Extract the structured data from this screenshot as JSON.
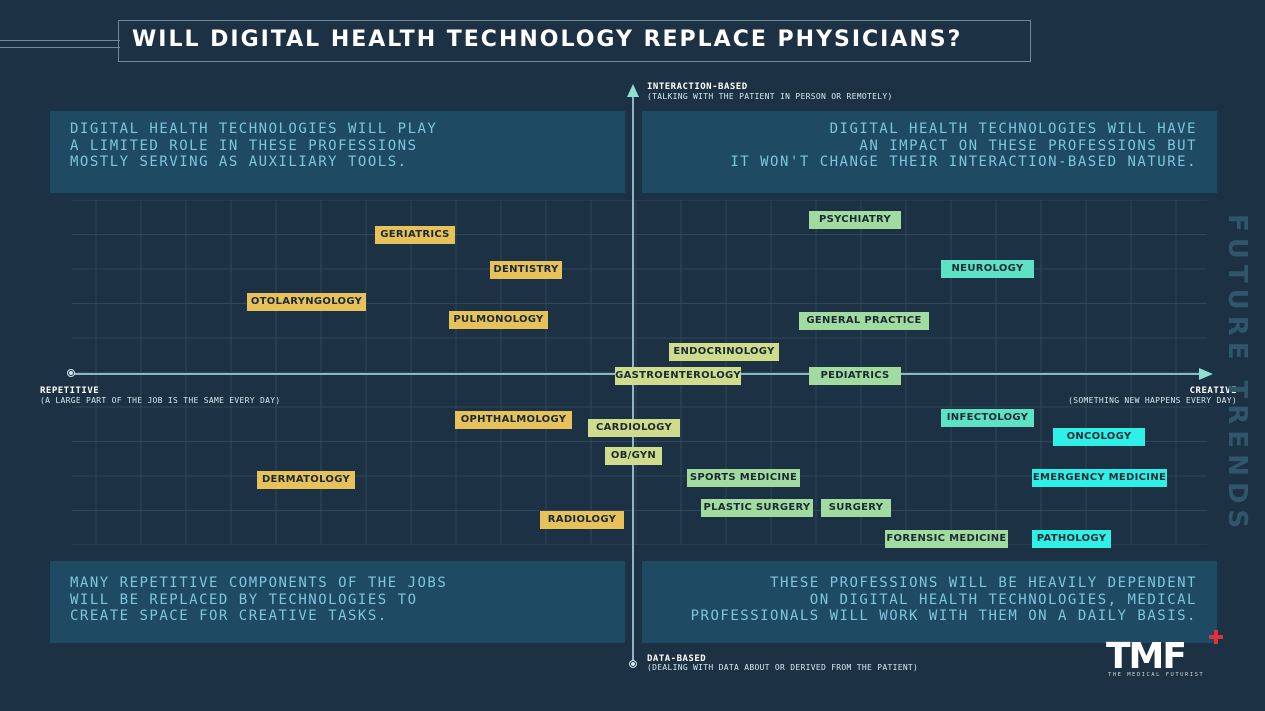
{
  "title": "WILL DIGITAL HEALTH TECHNOLOGY REPLACE PHYSICIANS?",
  "axes": {
    "top_label": "INTERACTION-BASED",
    "top_sub": "(TALKING WITH THE PATIENT IN PERSON OR REMOTELY)",
    "bottom_label": "DATA-BASED",
    "bottom_sub": "(DEALING WITH DATA ABOUT OR DERIVED FROM THE PATIENT)",
    "left_label": "REPETITIVE",
    "left_sub": "(A LARGE PART OF THE JOB IS THE SAME EVERY DAY)",
    "right_label": "CREATIVE",
    "right_sub": "(SOMETHING NEW HAPPENS EVERY DAY)"
  },
  "quadrants": {
    "top_left": "DIGITAL HEALTH TECHNOLOGIES WILL PLAY\nA LIMITED ROLE IN THESE PROFESSIONS\nMOSTLY SERVING AS AUXILIARY TOOLS.",
    "top_right": "DIGITAL HEALTH TECHNOLOGIES WILL HAVE\nAN IMPACT ON THESE PROFESSIONS BUT\nIT WON'T CHANGE THEIR INTERACTION-BASED NATURE.",
    "bottom_left": "MANY REPETITIVE COMPONENTS OF THE JOBS\nWILL BE REPLACED BY TECHNOLOGIES TO\nCREATE SPACE FOR CREATIVE TASKS.",
    "bottom_right": "THESE PROFESSIONS WILL BE HEAVILY DEPENDENT\nON DIGITAL HEALTH TECHNOLOGIES, MEDICAL\nPROFESSIONALS WILL WORK WITH THEM ON A DAILY BASIS."
  },
  "colors": {
    "yellow": "#e7c25a",
    "light_green": "#a2dba0",
    "mint": "#5ee2c6",
    "cyan": "#2ff0e6",
    "olive": "#cfdc8c"
  },
  "professions": [
    {
      "name": "PSYCHIATRY",
      "color": "light_green"
    },
    {
      "name": "GERIATRICS",
      "color": "yellow"
    },
    {
      "name": "DENTISTRY",
      "color": "yellow"
    },
    {
      "name": "NEUROLOGY",
      "color": "mint"
    },
    {
      "name": "OTOLARYNGOLOGY",
      "color": "yellow"
    },
    {
      "name": "PULMONOLOGY",
      "color": "yellow"
    },
    {
      "name": "GENERAL PRACTICE",
      "color": "light_green"
    },
    {
      "name": "ENDOCRINOLOGY",
      "color": "olive"
    },
    {
      "name": "GASTROENTEROLOGY",
      "color": "olive"
    },
    {
      "name": "PEDIATRICS",
      "color": "light_green"
    },
    {
      "name": "OPHTHALMOLOGY",
      "color": "yellow"
    },
    {
      "name": "CARDIOLOGY",
      "color": "olive"
    },
    {
      "name": "INFECTOLOGY",
      "color": "mint"
    },
    {
      "name": "ONCOLOGY",
      "color": "cyan"
    },
    {
      "name": "OB/GYN",
      "color": "olive"
    },
    {
      "name": "DERMATOLOGY",
      "color": "yellow"
    },
    {
      "name": "SPORTS MEDICINE",
      "color": "light_green"
    },
    {
      "name": "EMERGENCY MEDICINE",
      "color": "cyan"
    },
    {
      "name": "PLASTIC SURGERY",
      "color": "light_green"
    },
    {
      "name": "SURGERY",
      "color": "light_green"
    },
    {
      "name": "RADIOLOGY",
      "color": "yellow"
    },
    {
      "name": "FORENSIC MEDICINE",
      "color": "light_green"
    },
    {
      "name": "PATHOLOGY",
      "color": "cyan"
    }
  ],
  "brand": {
    "vertical": "FUTURE TRENDS",
    "logo": "TMF",
    "logo_sub": "THE MEDICAL FUTURIST"
  }
}
